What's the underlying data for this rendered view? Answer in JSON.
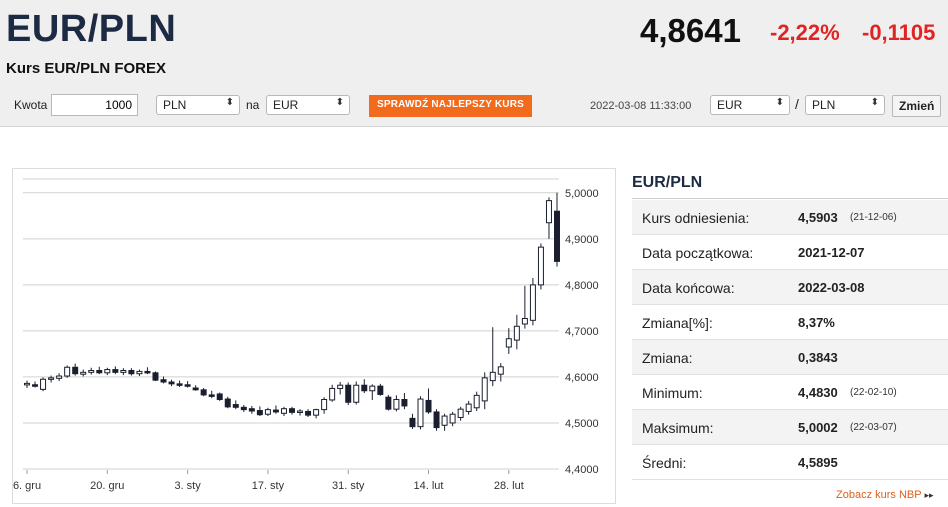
{
  "header": {
    "pair": "EUR/PLN",
    "subtitle": "Kurs EUR/PLN FOREX",
    "rate": "4,8641",
    "change_pct": "-2,22%",
    "change_abs": "-0,1105"
  },
  "converter": {
    "amount_label": "Kwota",
    "amount_value": "1000",
    "from_currency": "PLN",
    "na_label": "na",
    "to_currency": "EUR",
    "best_rate_button": "SPRAWDŹ NAJLEPSZY KURS",
    "timestamp": "2022-03-08 11:33:00",
    "pair_from": "EUR",
    "slash": "/",
    "pair_to": "PLN",
    "change_button": "Zmień"
  },
  "panel": {
    "title": "EUR/PLN",
    "rows": [
      {
        "label": "Kurs odniesienia:",
        "value": "4,5903",
        "extra": "(21-12-06)"
      },
      {
        "label": "Data początkowa:",
        "value": "2021-12-07",
        "extra": ""
      },
      {
        "label": "Data końcowa:",
        "value": "2022-03-08",
        "extra": ""
      },
      {
        "label": "Zmiana[%]:",
        "value": "8,37%",
        "extra": ""
      },
      {
        "label": "Zmiana:",
        "value": "0,3843",
        "extra": ""
      },
      {
        "label": "Minimum:",
        "value": "4,4830",
        "extra": "(22-02-10)"
      },
      {
        "label": "Maksimum:",
        "value": "5,0002",
        "extra": "(22-03-07)"
      },
      {
        "label": "Średni:",
        "value": "4,5895",
        "extra": ""
      }
    ],
    "nbp_link": "Zobacz kurs NBP",
    "nbp_arrow": "▸▸"
  },
  "colors": {
    "accent_orange": "#f26a1b",
    "negative_red": "#e02424",
    "title_navy": "#1d2a44"
  },
  "chart_data": {
    "type": "candlestick",
    "y_ticks": [
      "5,0000",
      "4,9000",
      "4,8000",
      "4,7000",
      "4,6000",
      "4,5000",
      "4,4000"
    ],
    "y_tick_values": [
      5.0,
      4.9,
      4.8,
      4.7,
      4.6,
      4.5,
      4.4
    ],
    "ylim": [
      4.4,
      5.03
    ],
    "x_ticks": [
      "6. gru",
      "20. gru",
      "3. sty",
      "17. sty",
      "31. sty",
      "14. lut",
      "28. lut"
    ],
    "x_tick_index": [
      0,
      10,
      20,
      30,
      40,
      50,
      60
    ],
    "grid": "horizontal",
    "candles": [
      {
        "o": 4.583,
        "h": 4.592,
        "l": 4.576,
        "c": 4.586
      },
      {
        "o": 4.583,
        "h": 4.59,
        "l": 4.577,
        "c": 4.581
      },
      {
        "o": 4.573,
        "h": 4.599,
        "l": 4.569,
        "c": 4.595
      },
      {
        "o": 4.595,
        "h": 4.603,
        "l": 4.588,
        "c": 4.598
      },
      {
        "o": 4.597,
        "h": 4.608,
        "l": 4.591,
        "c": 4.602
      },
      {
        "o": 4.602,
        "h": 4.625,
        "l": 4.598,
        "c": 4.621
      },
      {
        "o": 4.621,
        "h": 4.629,
        "l": 4.603,
        "c": 4.607
      },
      {
        "o": 4.606,
        "h": 4.616,
        "l": 4.601,
        "c": 4.61
      },
      {
        "o": 4.61,
        "h": 4.62,
        "l": 4.605,
        "c": 4.614
      },
      {
        "o": 4.614,
        "h": 4.622,
        "l": 4.606,
        "c": 4.609
      },
      {
        "o": 4.609,
        "h": 4.62,
        "l": 4.604,
        "c": 4.616
      },
      {
        "o": 4.616,
        "h": 4.623,
        "l": 4.606,
        "c": 4.61
      },
      {
        "o": 4.61,
        "h": 4.619,
        "l": 4.604,
        "c": 4.614
      },
      {
        "o": 4.614,
        "h": 4.619,
        "l": 4.603,
        "c": 4.607
      },
      {
        "o": 4.607,
        "h": 4.616,
        "l": 4.602,
        "c": 4.612
      },
      {
        "o": 4.612,
        "h": 4.621,
        "l": 4.606,
        "c": 4.609
      },
      {
        "o": 4.609,
        "h": 4.612,
        "l": 4.591,
        "c": 4.593
      },
      {
        "o": 4.594,
        "h": 4.601,
        "l": 4.586,
        "c": 4.589
      },
      {
        "o": 4.589,
        "h": 4.594,
        "l": 4.58,
        "c": 4.585
      },
      {
        "o": 4.585,
        "h": 4.592,
        "l": 4.578,
        "c": 4.583
      },
      {
        "o": 4.583,
        "h": 4.591,
        "l": 4.577,
        "c": 4.58
      },
      {
        "o": 4.576,
        "h": 4.582,
        "l": 4.57,
        "c": 4.572
      },
      {
        "o": 4.572,
        "h": 4.576,
        "l": 4.558,
        "c": 4.561
      },
      {
        "o": 4.561,
        "h": 4.57,
        "l": 4.554,
        "c": 4.558
      },
      {
        "o": 4.563,
        "h": 4.566,
        "l": 4.548,
        "c": 4.551
      },
      {
        "o": 4.552,
        "h": 4.557,
        "l": 4.532,
        "c": 4.535
      },
      {
        "o": 4.54,
        "h": 4.549,
        "l": 4.53,
        "c": 4.534
      },
      {
        "o": 4.534,
        "h": 4.539,
        "l": 4.524,
        "c": 4.529
      },
      {
        "o": 4.531,
        "h": 4.537,
        "l": 4.52,
        "c": 4.526
      },
      {
        "o": 4.527,
        "h": 4.536,
        "l": 4.515,
        "c": 4.518
      },
      {
        "o": 4.519,
        "h": 4.533,
        "l": 4.515,
        "c": 4.529
      },
      {
        "o": 4.528,
        "h": 4.538,
        "l": 4.52,
        "c": 4.524
      },
      {
        "o": 4.521,
        "h": 4.535,
        "l": 4.515,
        "c": 4.531
      },
      {
        "o": 4.531,
        "h": 4.535,
        "l": 4.518,
        "c": 4.523
      },
      {
        "o": 4.524,
        "h": 4.53,
        "l": 4.516,
        "c": 4.526
      },
      {
        "o": 4.525,
        "h": 4.53,
        "l": 4.513,
        "c": 4.517
      },
      {
        "o": 4.517,
        "h": 4.531,
        "l": 4.51,
        "c": 4.529
      },
      {
        "o": 4.529,
        "h": 4.556,
        "l": 4.52,
        "c": 4.551
      },
      {
        "o": 4.55,
        "h": 4.583,
        "l": 4.546,
        "c": 4.575
      },
      {
        "o": 4.575,
        "h": 4.589,
        "l": 4.562,
        "c": 4.582
      },
      {
        "o": 4.582,
        "h": 4.588,
        "l": 4.539,
        "c": 4.545
      },
      {
        "o": 4.545,
        "h": 4.59,
        "l": 4.54,
        "c": 4.582
      },
      {
        "o": 4.582,
        "h": 4.595,
        "l": 4.565,
        "c": 4.57
      },
      {
        "o": 4.57,
        "h": 4.584,
        "l": 4.55,
        "c": 4.58
      },
      {
        "o": 4.58,
        "h": 4.585,
        "l": 4.559,
        "c": 4.562
      },
      {
        "o": 4.556,
        "h": 4.561,
        "l": 4.527,
        "c": 4.53
      },
      {
        "o": 4.53,
        "h": 4.56,
        "l": 4.525,
        "c": 4.551
      },
      {
        "o": 4.551,
        "h": 4.565,
        "l": 4.53,
        "c": 4.537
      },
      {
        "o": 4.51,
        "h": 4.52,
        "l": 4.487,
        "c": 4.492
      },
      {
        "o": 4.492,
        "h": 4.558,
        "l": 4.486,
        "c": 4.552
      },
      {
        "o": 4.549,
        "h": 4.575,
        "l": 4.52,
        "c": 4.524
      },
      {
        "o": 4.524,
        "h": 4.53,
        "l": 4.483,
        "c": 4.49
      },
      {
        "o": 4.495,
        "h": 4.52,
        "l": 4.483,
        "c": 4.515
      },
      {
        "o": 4.5,
        "h": 4.524,
        "l": 4.493,
        "c": 4.519
      },
      {
        "o": 4.512,
        "h": 4.535,
        "l": 4.505,
        "c": 4.53
      },
      {
        "o": 4.525,
        "h": 4.548,
        "l": 4.518,
        "c": 4.541
      },
      {
        "o": 4.533,
        "h": 4.568,
        "l": 4.526,
        "c": 4.56
      },
      {
        "o": 4.548,
        "h": 4.61,
        "l": 4.53,
        "c": 4.598
      },
      {
        "o": 4.592,
        "h": 4.708,
        "l": 4.58,
        "c": 4.61
      },
      {
        "o": 4.606,
        "h": 4.63,
        "l": 4.59,
        "c": 4.622
      },
      {
        "o": 4.665,
        "h": 4.706,
        "l": 4.65,
        "c": 4.683
      },
      {
        "o": 4.68,
        "h": 4.735,
        "l": 4.66,
        "c": 4.71
      },
      {
        "o": 4.715,
        "h": 4.798,
        "l": 4.705,
        "c": 4.727
      },
      {
        "o": 4.723,
        "h": 4.815,
        "l": 4.712,
        "c": 4.8
      },
      {
        "o": 4.8,
        "h": 4.89,
        "l": 4.79,
        "c": 4.882
      },
      {
        "o": 4.935,
        "h": 4.99,
        "l": 4.9,
        "c": 4.983
      },
      {
        "o": 4.96,
        "h": 5.0,
        "l": 4.84,
        "c": 4.851
      }
    ]
  }
}
